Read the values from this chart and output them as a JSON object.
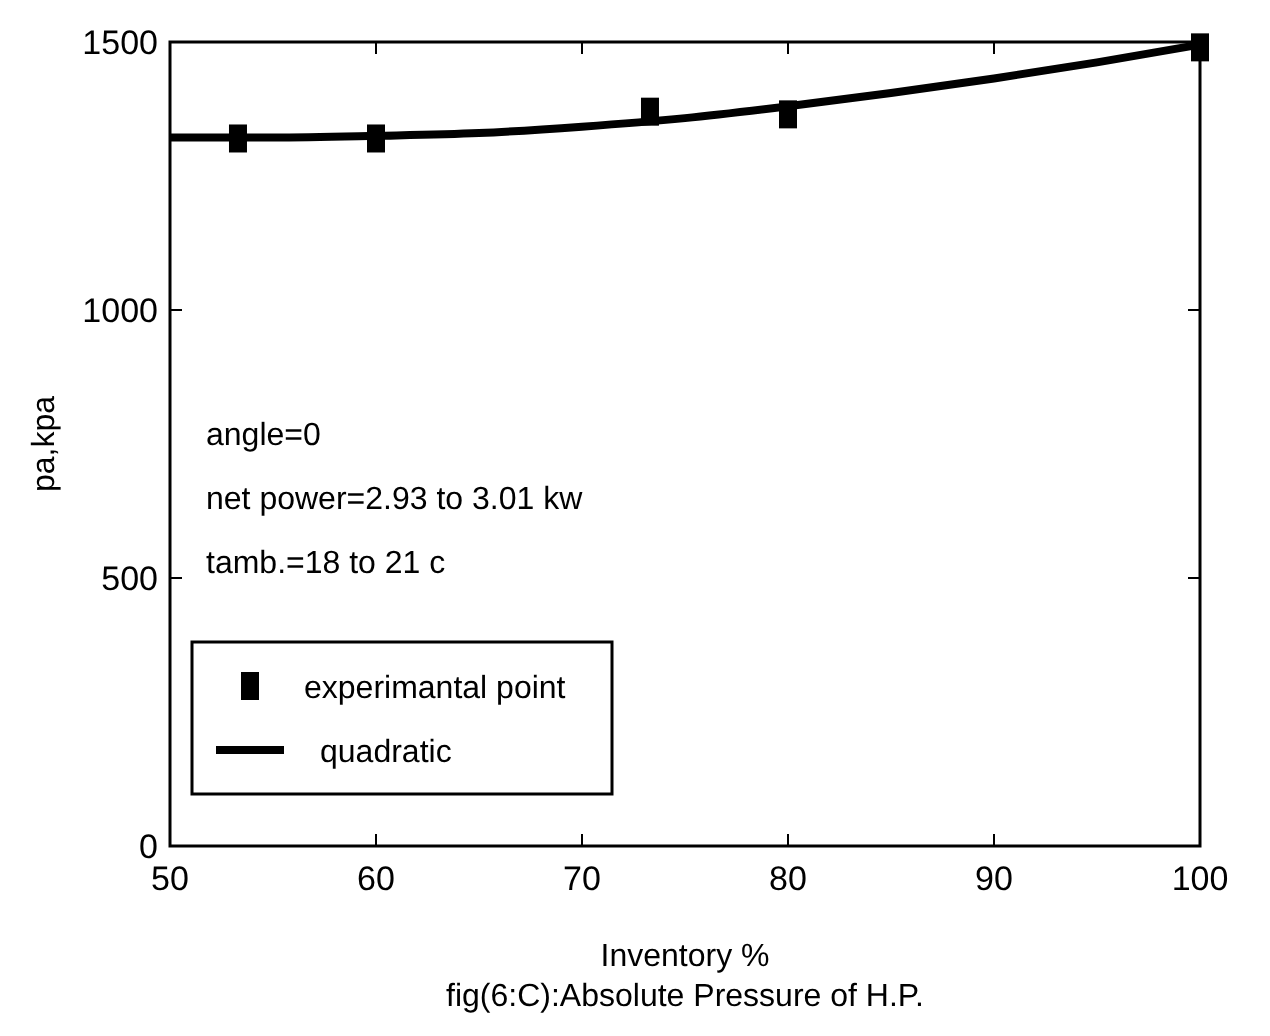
{
  "chart_data": {
    "type": "scatter",
    "xlabel": "Inventory %",
    "ylabel": "pa,kpa",
    "xlim": [
      50,
      100
    ],
    "ylim": [
      0,
      1500
    ],
    "xticks": [
      50,
      60,
      70,
      80,
      90,
      100
    ],
    "yticks": [
      0,
      500,
      1000,
      1500
    ],
    "grid": false,
    "legend": "bottom left",
    "annotations": [
      "angle=0",
      "net power=2.93 to 3.01 kw",
      "tamb.=18 to 21 c",
      "fig(6:C):Absolute Pressure of H.P."
    ],
    "series": [
      {
        "name": "experimantal point",
        "type": "scatter",
        "marker": "square",
        "color": "#000000",
        "x": [
          53.3,
          60,
          73.3,
          80,
          100
        ],
        "values": [
          1320,
          1320,
          1370,
          1365,
          1490
        ]
      },
      {
        "name": "quadratic",
        "type": "line",
        "marker": "none",
        "line_style": "solid",
        "color": "#000000",
        "x": [
          50,
          55,
          60,
          65,
          70,
          75,
          80,
          85,
          90,
          95,
          100
        ],
        "values": [
          1322,
          1322,
          1325,
          1330,
          1342,
          1358,
          1380,
          1405,
          1432,
          1462,
          1495
        ]
      }
    ]
  }
}
